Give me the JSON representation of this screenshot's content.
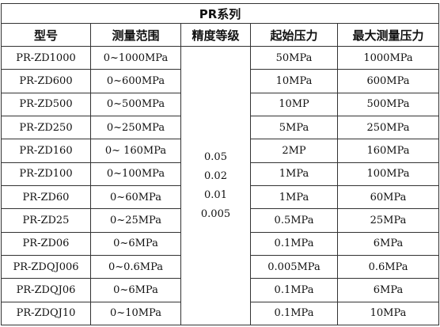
{
  "title": "PR系列",
  "headers": [
    "型号",
    "测量范围",
    "精度等级",
    "起始压力",
    "最大测量压力"
  ],
  "accuracy_grades": [
    "0.05",
    "0.02",
    "0.01",
    "0.005"
  ],
  "rows": [
    {
      "model": "PR-ZD1000",
      "range": "0~1000MPa",
      "start": "50MPa",
      "max": "1000MPa"
    },
    {
      "model": "PR-ZD600",
      "range": "0~600MPa",
      "start": "10MPa",
      "max": "600MPa"
    },
    {
      "model": "PR-ZD500",
      "range": "0~500MPa",
      "start": "10MP",
      "max": "500MPa"
    },
    {
      "model": "PR-ZD250",
      "range": "0~250MPa",
      "start": "5MPa",
      "max": "250MPa"
    },
    {
      "model": "PR-ZD160",
      "range": "0~ 160MPa",
      "start": "2MP",
      "max": "160MPa"
    },
    {
      "model": "PR-ZD100",
      "range": "0~100MPa",
      "start": "1MPa",
      "max": "100MPa"
    },
    {
      "model": "PR-ZD60",
      "range": "0~60MPa",
      "start": "1MPa",
      "max": "60MPa"
    },
    {
      "model": "PR-ZD25",
      "range": "0~25MPa",
      "start": "0.5MPa",
      "max": "25MPa"
    },
    {
      "model": "PR-ZD06",
      "range": "0~6MPa",
      "start": "0.1MPa",
      "max": "6MPa"
    },
    {
      "model": "PR-ZDQJ006",
      "range": "0~0.6MPa",
      "start": "0.005MPa",
      "max": "0.6MPa"
    },
    {
      "model": "PR-ZDQJ06",
      "range": "0~6MPa",
      "start": "0.1MPa",
      "max": "6MPa"
    },
    {
      "model": "PR-ZDQJ10",
      "range": "0~10MPa",
      "start": "0.1MPa",
      "max": "10MPa"
    }
  ]
}
